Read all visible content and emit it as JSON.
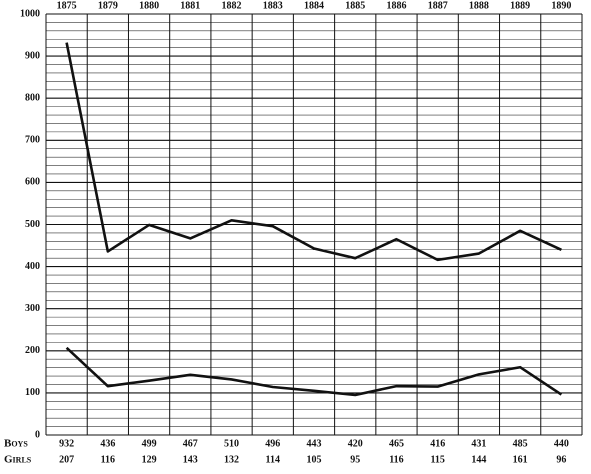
{
  "chart_data": {
    "type": "line",
    "categories": [
      "1875",
      "1879",
      "1880",
      "1881",
      "1882",
      "1883",
      "1884",
      "1885",
      "1886",
      "1887",
      "1888",
      "1889",
      "1890"
    ],
    "series": [
      {
        "name": "Boys",
        "color": "#111111",
        "values": [
          932,
          436,
          499,
          467,
          510,
          496,
          443,
          420,
          465,
          416,
          431,
          485,
          440
        ]
      },
      {
        "name": "Girls",
        "color": "#111111",
        "values": [
          207,
          116,
          129,
          143,
          132,
          114,
          105,
          95,
          116,
          115,
          144,
          161,
          96
        ]
      }
    ],
    "ylim": [
      0,
      1000
    ],
    "yticks": [
      0,
      100,
      200,
      300,
      400,
      500,
      600,
      700,
      800,
      900,
      1000
    ],
    "minor_grid_step": 20,
    "grid": true
  }
}
